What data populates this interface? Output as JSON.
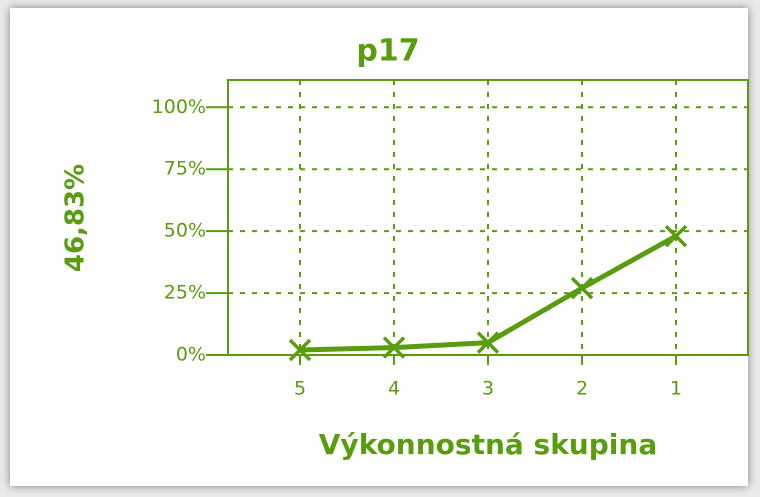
{
  "chart_data": {
    "type": "line",
    "title": "p17",
    "y_label": "46,83%",
    "x_label": "Výkonnostná skupina",
    "categories": [
      "5",
      "4",
      "3",
      "2",
      "1"
    ],
    "values": [
      2,
      3,
      5,
      27,
      48
    ],
    "color": "#5a9c10",
    "ylim": [
      0,
      111
    ],
    "yticks": [
      {
        "value": 0,
        "label": "0%"
      },
      {
        "value": 25,
        "label": "25%"
      },
      {
        "value": 50,
        "label": "50%"
      },
      {
        "value": 75,
        "label": "75%"
      },
      {
        "value": 100,
        "label": "100%"
      }
    ],
    "grid": true
  }
}
